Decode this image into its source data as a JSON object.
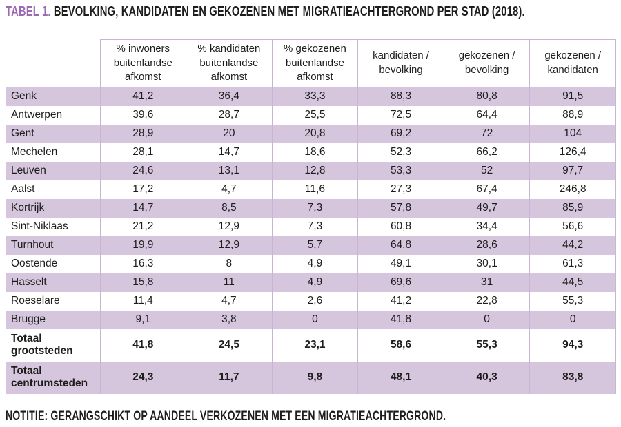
{
  "title": {
    "prefix": "TABEL 1.",
    "text": "BEVOLKING, KANDIDATEN EN GEKOZENEN MET MIGRATIEACHTERGROND PER STAD (2018)."
  },
  "note": "NOTITIE: GERANGSCHIKT OP AANDEEL VERKOZENEN MET EEN MIGRATIEACHTERGROND.",
  "colors": {
    "accent_purple": "#9b6ab2",
    "row_band": "#d5c5dd",
    "grid_border": "#c9b5d3",
    "text": "#1d1d1b"
  },
  "chart_data": {
    "type": "table",
    "title": "TABEL 1. BEVOLKING, KANDIDATEN EN GEKOZENEN MET MIGRATIEACHTERGROND PER STAD (2018).",
    "columns": [
      "% inwoners buitenlandse afkomst",
      "% kandidaten buitenlandse afkomst",
      "% gekozenen buitenlandse afkomst",
      "kandidaten / bevolking",
      "gekozenen / bevolking",
      "gekozenen / kandidaten"
    ],
    "rows": [
      {
        "label": "Genk",
        "values": [
          "41,2",
          "36,4",
          "33,3",
          "88,3",
          "80,8",
          "91,5"
        ]
      },
      {
        "label": "Antwerpen",
        "values": [
          "39,6",
          "28,7",
          "25,5",
          "72,5",
          "64,4",
          "88,9"
        ]
      },
      {
        "label": "Gent",
        "values": [
          "28,9",
          "20",
          "20,8",
          "69,2",
          "72",
          "104"
        ]
      },
      {
        "label": "Mechelen",
        "values": [
          "28,1",
          "14,7",
          "18,6",
          "52,3",
          "66,2",
          "126,4"
        ]
      },
      {
        "label": "Leuven",
        "values": [
          "24,6",
          "13,1",
          "12,8",
          "53,3",
          "52",
          "97,7"
        ]
      },
      {
        "label": "Aalst",
        "values": [
          "17,2",
          "4,7",
          "11,6",
          "27,3",
          "67,4",
          "246,8"
        ]
      },
      {
        "label": "Kortrijk",
        "values": [
          "14,7",
          "8,5",
          "7,3",
          "57,8",
          "49,7",
          "85,9"
        ]
      },
      {
        "label": "Sint-Niklaas",
        "values": [
          "21,2",
          "12,9",
          "7,3",
          "60,8",
          "34,4",
          "56,6"
        ]
      },
      {
        "label": "Turnhout",
        "values": [
          "19,9",
          "12,9",
          "5,7",
          "64,8",
          "28,6",
          "44,2"
        ]
      },
      {
        "label": "Oostende",
        "values": [
          "16,3",
          "8",
          "4,9",
          "49,1",
          "30,1",
          "61,3"
        ]
      },
      {
        "label": "Hasselt",
        "values": [
          "15,8",
          "11",
          "4,9",
          "69,6",
          "31",
          "44,5"
        ]
      },
      {
        "label": "Roeselare",
        "values": [
          "11,4",
          "4,7",
          "2,6",
          "41,2",
          "22,8",
          "55,3"
        ]
      },
      {
        "label": "Brugge",
        "values": [
          "9,1",
          "3,8",
          "0",
          "41,8",
          "0",
          "0"
        ]
      }
    ],
    "totals": [
      {
        "label": "Totaal grootsteden",
        "values": [
          "41,8",
          "24,5",
          "23,1",
          "58,6",
          "55,3",
          "94,3"
        ]
      },
      {
        "label": "Totaal centrumsteden",
        "values": [
          "24,3",
          "11,7",
          "9,8",
          "48,1",
          "40,3",
          "83,8"
        ]
      }
    ]
  }
}
